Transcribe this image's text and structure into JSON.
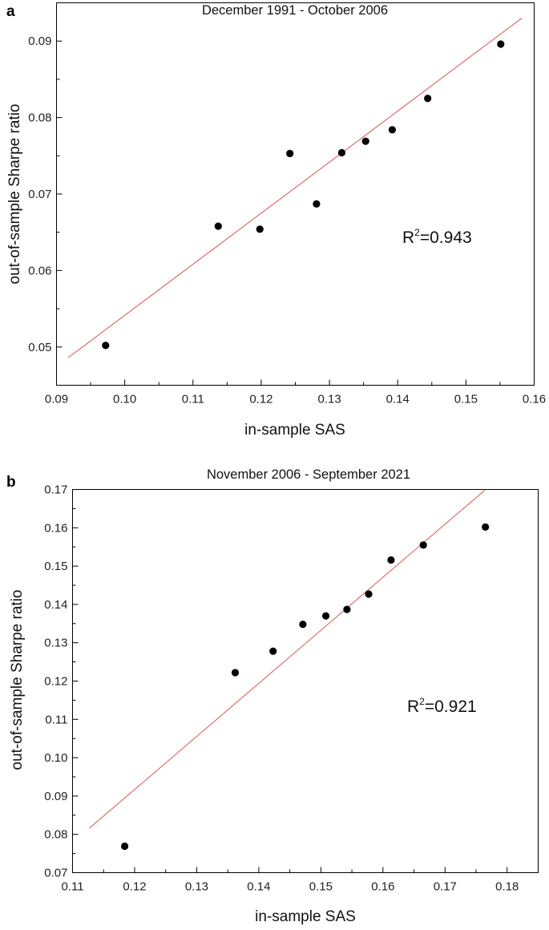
{
  "chart_data": [
    {
      "panel": "a",
      "type": "scatter",
      "title": "December 1991 - October 2006",
      "xlabel": "in-sample SAS",
      "ylabel": "out-of-sample Sharpe ratio",
      "xlim": [
        0.09,
        0.16
      ],
      "ylim": [
        0.045,
        0.095
      ],
      "xticks": [
        "0.09",
        "0.10",
        "0.11",
        "0.12",
        "0.13",
        "0.14",
        "0.15",
        "0.16"
      ],
      "yticks": [
        "0.05",
        "0.06",
        "0.07",
        "0.08",
        "0.09"
      ],
      "points": [
        {
          "x": 0.0972,
          "y": 0.0502
        },
        {
          "x": 0.1137,
          "y": 0.0658
        },
        {
          "x": 0.1198,
          "y": 0.0654
        },
        {
          "x": 0.1242,
          "y": 0.0753
        },
        {
          "x": 0.1281,
          "y": 0.0687
        },
        {
          "x": 0.1318,
          "y": 0.0754
        },
        {
          "x": 0.1353,
          "y": 0.0769
        },
        {
          "x": 0.1392,
          "y": 0.0784
        },
        {
          "x": 0.1444,
          "y": 0.0825
        },
        {
          "x": 0.1551,
          "y": 0.0896
        }
      ],
      "fit_line": {
        "x": [
          0.0917,
          0.1582
        ],
        "y": [
          0.0486,
          0.093
        ],
        "color": "#d9534f"
      },
      "annotation": {
        "base": "R",
        "sup": "2",
        "value": "=0.943"
      },
      "point_color": "#000000",
      "grid": false
    },
    {
      "panel": "b",
      "type": "scatter",
      "title": "November 2006 - September 2021",
      "xlabel": "in-sample SAS",
      "ylabel": "out-of-sample Sharpe ratio",
      "xlim": [
        0.11,
        0.185
      ],
      "ylim": [
        0.07,
        0.17
      ],
      "xticks": [
        "0.11",
        "0.12",
        "0.13",
        "0.14",
        "0.15",
        "0.16",
        "0.17",
        "0.18"
      ],
      "yticks": [
        "0.07",
        "0.08",
        "0.09",
        "0.10",
        "0.11",
        "0.12",
        "0.13",
        "0.14",
        "0.15",
        "0.16",
        "0.17"
      ],
      "points": [
        {
          "x": 0.1184,
          "y": 0.0769
        },
        {
          "x": 0.1362,
          "y": 0.1222
        },
        {
          "x": 0.1423,
          "y": 0.1278
        },
        {
          "x": 0.1471,
          "y": 0.1348
        },
        {
          "x": 0.1508,
          "y": 0.137
        },
        {
          "x": 0.1542,
          "y": 0.1387
        },
        {
          "x": 0.1577,
          "y": 0.1427
        },
        {
          "x": 0.1613,
          "y": 0.1516
        },
        {
          "x": 0.1665,
          "y": 0.1555
        },
        {
          "x": 0.1765,
          "y": 0.1602
        }
      ],
      "fit_line": {
        "x": [
          0.1127,
          0.1764
        ],
        "y": [
          0.0816,
          0.1698
        ],
        "color": "#d9534f"
      },
      "annotation": {
        "base": "R",
        "sup": "2",
        "value": "=0.921"
      },
      "point_color": "#000000",
      "grid": false
    }
  ]
}
